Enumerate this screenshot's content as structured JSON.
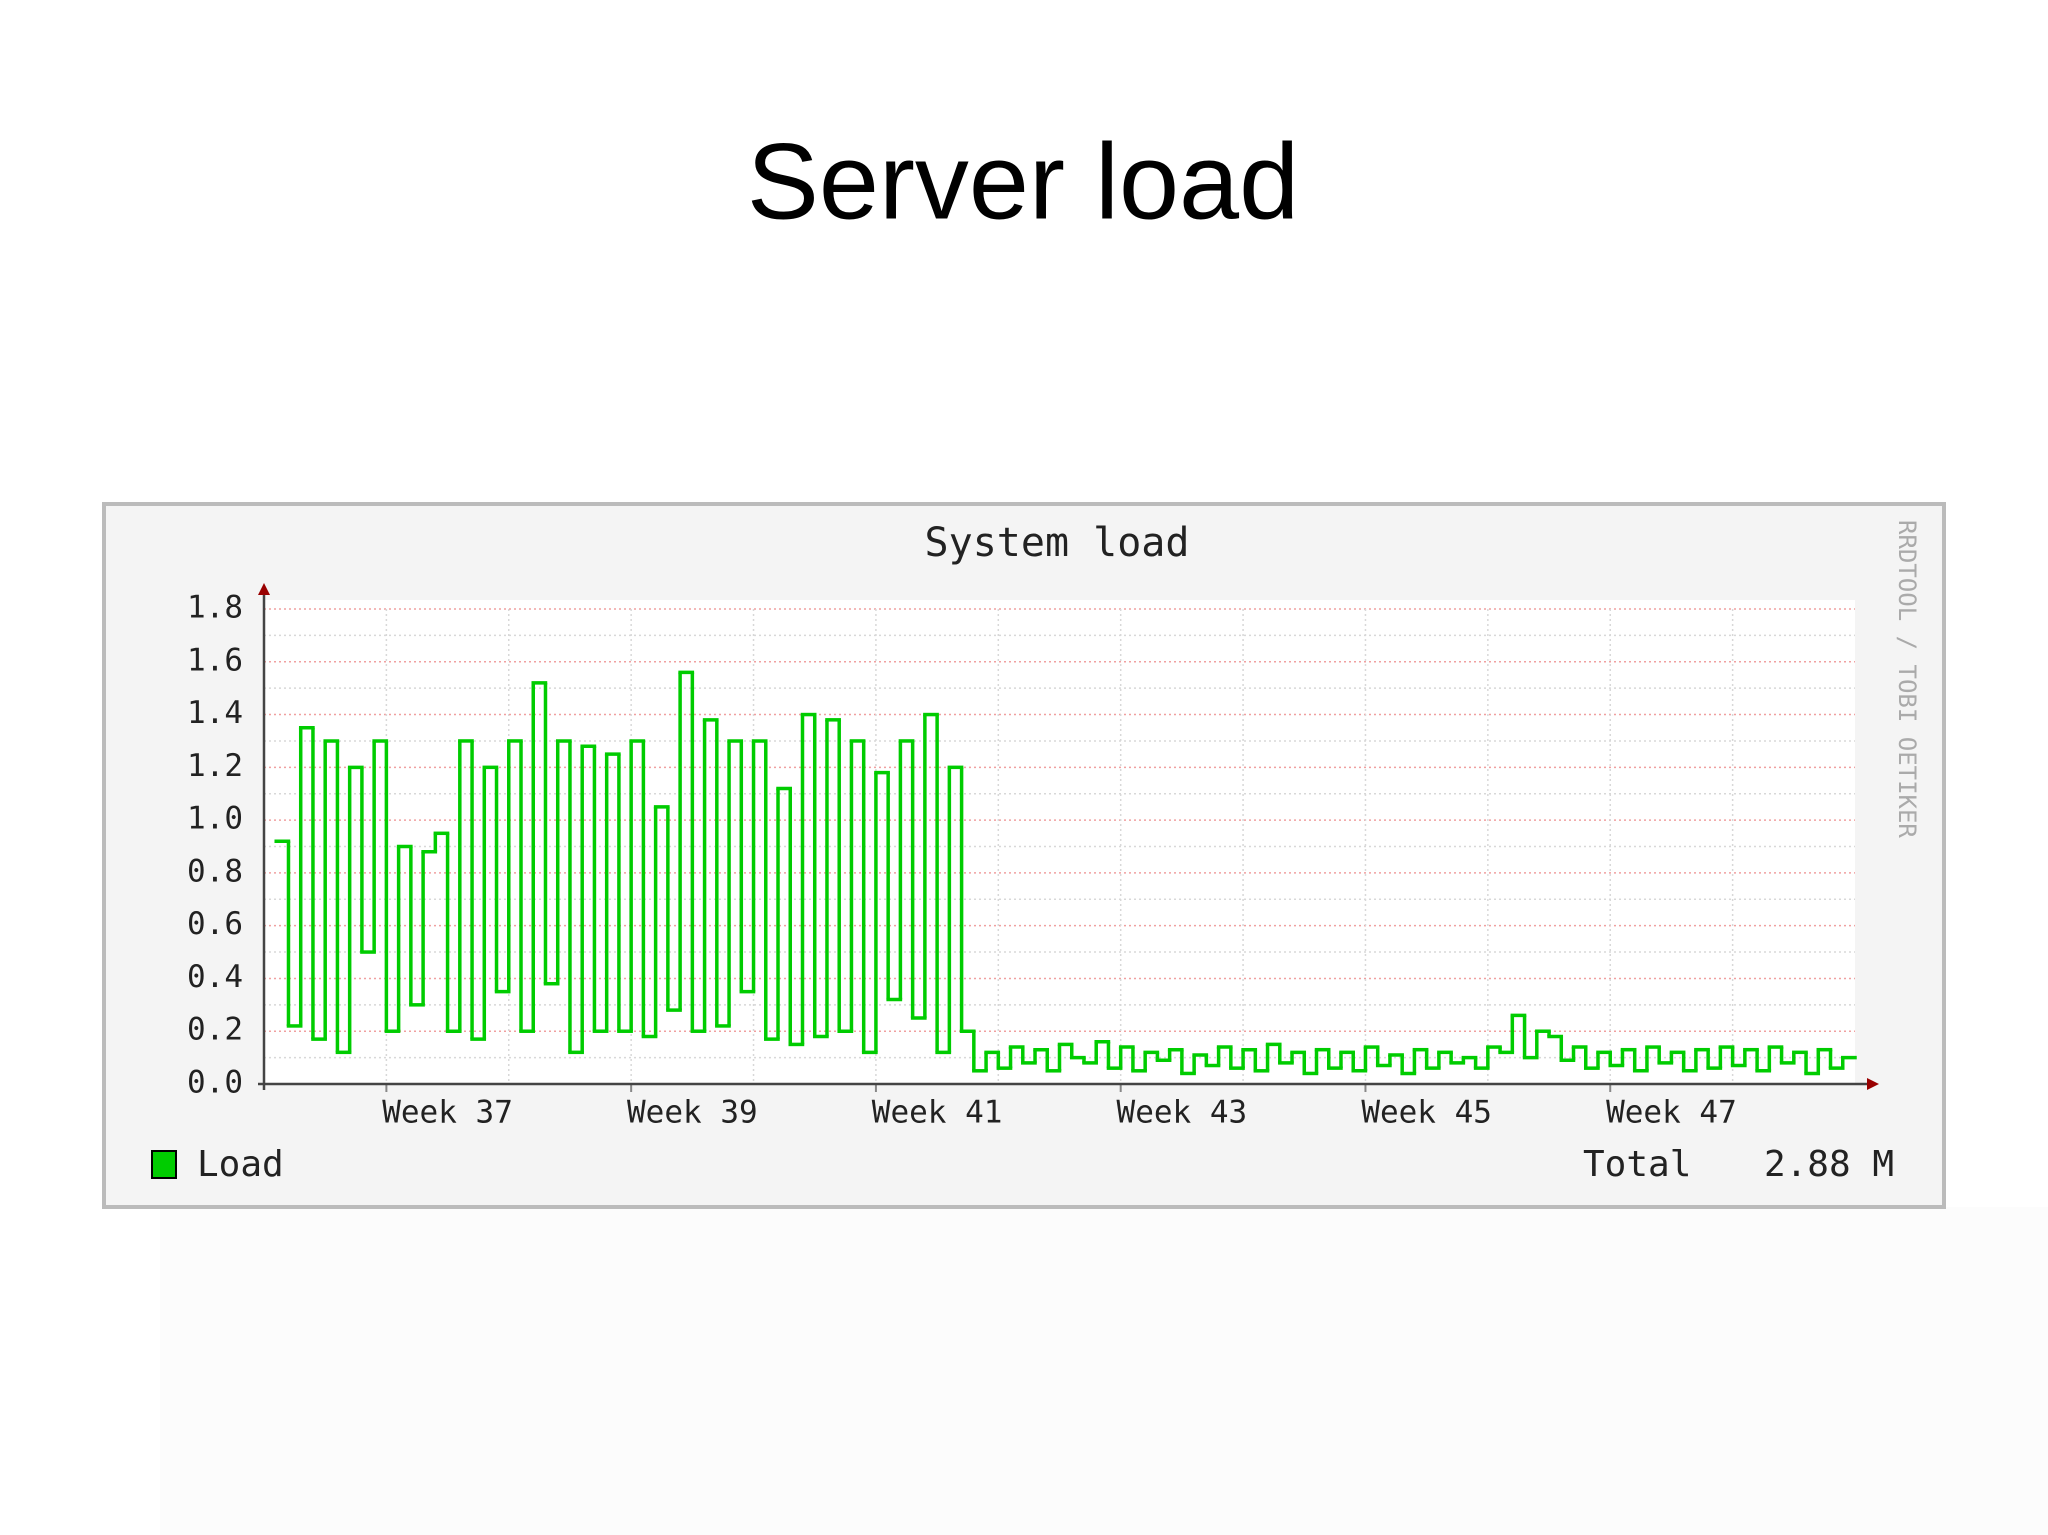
{
  "slide_title": "Server load",
  "chart_data": {
    "type": "step-line",
    "title": "System load",
    "watermark": "RRDTOOL / TOBI OETIKER",
    "xlim": [
      36,
      49
    ],
    "xticks": [
      {
        "value": 37,
        "label": "Week 37"
      },
      {
        "value": 39,
        "label": "Week 39"
      },
      {
        "value": 41,
        "label": "Week 41"
      },
      {
        "value": 43,
        "label": "Week 43"
      },
      {
        "value": 45,
        "label": "Week 45"
      },
      {
        "value": 47,
        "label": "Week 47"
      }
    ],
    "x_minor_ticks": [
      38,
      40,
      42,
      44,
      46,
      48
    ],
    "ylim": [
      0,
      1.8
    ],
    "yticks": [
      {
        "value": 0,
        "label": "0.0"
      },
      0.2,
      0.4,
      0.6,
      0.8,
      {
        "value": 1,
        "label": "1.0"
      },
      1.2,
      1.4,
      1.6,
      1.8
    ],
    "y_minor_ticks": [
      0.1,
      0.3,
      0.5,
      0.7,
      0.9,
      1.1,
      1.3,
      1.5,
      1.7
    ],
    "grid": true,
    "x": [
      36.1,
      36.2,
      36.3,
      36.4,
      36.5,
      36.6,
      36.7,
      36.8,
      36.9,
      37.0,
      37.1,
      37.2,
      37.3,
      37.4,
      37.5,
      37.6,
      37.7,
      37.8,
      37.9,
      38.0,
      38.1,
      38.2,
      38.3,
      38.4,
      38.5,
      38.6,
      38.7,
      38.8,
      38.9,
      39.0,
      39.1,
      39.2,
      39.3,
      39.4,
      39.5,
      39.6,
      39.7,
      39.8,
      39.9,
      40.0,
      40.1,
      40.2,
      40.3,
      40.4,
      40.5,
      40.6,
      40.7,
      40.8,
      40.9,
      41.0,
      41.1,
      41.2,
      41.3,
      41.4,
      41.5,
      41.6,
      41.7,
      41.8,
      41.9,
      42.0,
      42.1,
      42.2,
      42.3,
      42.4,
      42.5,
      42.6,
      42.7,
      42.8,
      42.9,
      43.0,
      43.1,
      43.2,
      43.3,
      43.4,
      43.5,
      43.6,
      43.7,
      43.8,
      43.9,
      44.0,
      44.1,
      44.2,
      44.3,
      44.4,
      44.5,
      44.6,
      44.7,
      44.8,
      44.9,
      45.0,
      45.1,
      45.2,
      45.3,
      45.4,
      45.5,
      45.6,
      45.7,
      45.8,
      45.9,
      46.0,
      46.1,
      46.2,
      46.3,
      46.4,
      46.5,
      46.6,
      46.7,
      46.8,
      46.9,
      47.0,
      47.1,
      47.2,
      47.3,
      47.4,
      47.5,
      47.6,
      47.7,
      47.8,
      47.9,
      48.0,
      48.1,
      48.2,
      48.3,
      48.4,
      48.5,
      48.6,
      48.7,
      48.8,
      48.9
    ],
    "series": [
      {
        "name": "Load",
        "color": "#00cc00",
        "values": [
          0.92,
          0.22,
          1.35,
          0.17,
          1.3,
          0.12,
          1.2,
          0.5,
          1.3,
          0.2,
          0.9,
          0.3,
          0.88,
          0.95,
          0.2,
          1.3,
          0.17,
          1.2,
          0.35,
          1.3,
          0.2,
          1.52,
          0.38,
          1.3,
          0.12,
          1.28,
          0.2,
          1.25,
          0.2,
          1.3,
          0.18,
          1.05,
          0.28,
          1.56,
          0.2,
          1.38,
          0.22,
          1.3,
          0.35,
          1.3,
          0.17,
          1.12,
          0.15,
          1.4,
          0.18,
          1.38,
          0.2,
          1.3,
          0.12,
          1.18,
          0.32,
          1.3,
          0.25,
          1.4,
          0.12,
          1.2,
          0.2,
          0.05,
          0.12,
          0.06,
          0.14,
          0.08,
          0.13,
          0.05,
          0.15,
          0.1,
          0.08,
          0.16,
          0.06,
          0.14,
          0.05,
          0.12,
          0.09,
          0.13,
          0.04,
          0.11,
          0.07,
          0.14,
          0.06,
          0.13,
          0.05,
          0.15,
          0.08,
          0.12,
          0.04,
          0.13,
          0.06,
          0.12,
          0.05,
          0.14,
          0.07,
          0.11,
          0.04,
          0.13,
          0.06,
          0.12,
          0.08,
          0.1,
          0.06,
          0.14,
          0.12,
          0.26,
          0.1,
          0.2,
          0.18,
          0.09,
          0.14,
          0.06,
          0.12,
          0.07,
          0.13,
          0.05,
          0.14,
          0.08,
          0.12,
          0.05,
          0.13,
          0.06,
          0.14,
          0.07,
          0.13,
          0.05,
          0.14,
          0.08,
          0.12,
          0.04,
          0.13,
          0.06,
          0.1
        ]
      }
    ],
    "legend_total_label": "Total",
    "legend_total_value": "2.88 M"
  }
}
